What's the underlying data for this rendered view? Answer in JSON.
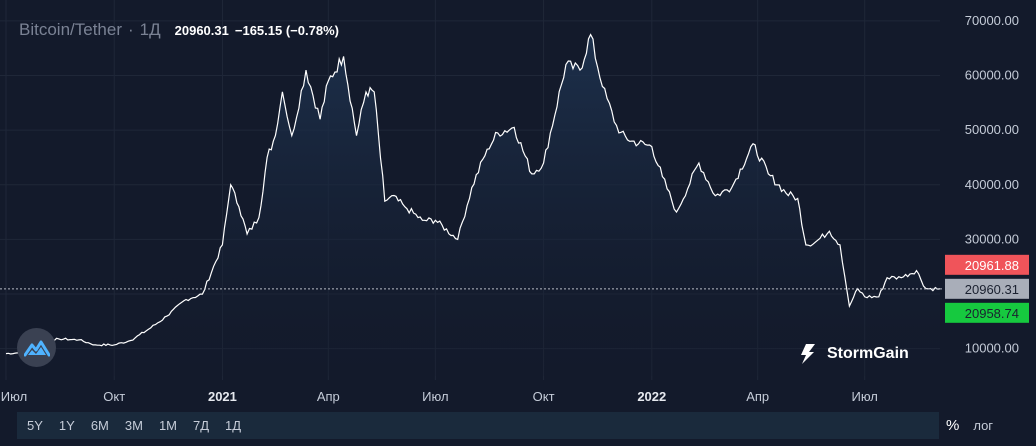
{
  "header": {
    "symbol": "Bitcoin/Tether",
    "separator": "·",
    "interval": "1Д",
    "last_price": "20960.31",
    "change": "−165.15 (−0.78%)"
  },
  "brand": {
    "name": "StormGain"
  },
  "range_buttons": [
    "5Y",
    "1Y",
    "6M",
    "3M",
    "1M",
    "7Д",
    "1Д"
  ],
  "controls": {
    "percent": "%",
    "log": "лог"
  },
  "price_tags": {
    "ask": "20961.88",
    "last": "20960.31",
    "bid": "20958.74"
  },
  "colors": {
    "background": "#131a2b",
    "line": "#ffffff",
    "ask_tag": "#f0545a",
    "last_tag": "#a9aeb9",
    "bid_tag": "#16c93f",
    "grid": "#1f2738"
  },
  "chart_data": {
    "type": "area",
    "title": "",
    "xlabel": "",
    "ylabel": "",
    "xlim": [
      "2020-07-01",
      "2022-09-03"
    ],
    "ylim": [
      5000,
      72000
    ],
    "y_ticks": [
      10000,
      20000,
      30000,
      40000,
      50000,
      60000,
      70000
    ],
    "y_tick_labels": [
      "10000.00",
      "20000.00",
      "30000.00",
      "40000.00",
      "50000.00",
      "60000.00",
      "70000.00"
    ],
    "x_tick_labels": [
      {
        "date": "2020-07-01",
        "label": "Июл"
      },
      {
        "date": "2020-10-01",
        "label": "Окт"
      },
      {
        "date": "2021-01-01",
        "label": "2021"
      },
      {
        "date": "2021-04-01",
        "label": "Апр"
      },
      {
        "date": "2021-07-01",
        "label": "Июл"
      },
      {
        "date": "2021-10-01",
        "label": "Окт"
      },
      {
        "date": "2022-01-01",
        "label": "2022"
      },
      {
        "date": "2022-04-01",
        "label": "Апр"
      },
      {
        "date": "2022-07-01",
        "label": "Июл"
      }
    ],
    "grid": true,
    "series": [
      {
        "x": [
          "2020-07-01",
          "2020-07-15",
          "2020-08-01",
          "2020-08-15",
          "2020-09-01",
          "2020-09-15",
          "2020-10-01",
          "2020-10-15",
          "2020-11-01",
          "2020-11-15",
          "2020-12-01",
          "2020-12-15",
          "2021-01-01",
          "2021-01-08",
          "2021-01-15",
          "2021-01-22",
          "2021-02-01",
          "2021-02-08",
          "2021-02-15",
          "2021-02-21",
          "2021-03-01",
          "2021-03-13",
          "2021-03-25",
          "2021-04-01",
          "2021-04-14",
          "2021-04-25",
          "2021-05-03",
          "2021-05-10",
          "2021-05-19",
          "2021-05-25",
          "2021-06-05",
          "2021-06-20",
          "2021-07-01",
          "2021-07-20",
          "2021-08-01",
          "2021-08-14",
          "2021-08-23",
          "2021-09-06",
          "2021-09-21",
          "2021-10-01",
          "2021-10-20",
          "2021-11-01",
          "2021-11-10",
          "2021-11-20",
          "2021-12-04",
          "2021-12-15",
          "2022-01-01",
          "2022-01-10",
          "2022-01-22",
          "2022-02-10",
          "2022-02-24",
          "2022-03-10",
          "2022-03-28",
          "2022-04-10",
          "2022-04-25",
          "2022-05-05",
          "2022-05-12",
          "2022-05-20",
          "2022-06-01",
          "2022-06-10",
          "2022-06-18",
          "2022-06-25",
          "2022-07-01",
          "2022-07-13",
          "2022-07-20",
          "2022-08-01",
          "2022-08-14",
          "2022-08-22",
          "2022-09-03"
        ],
        "y": [
          9100,
          9300,
          11300,
          11800,
          11600,
          10700,
          10700,
          11500,
          13800,
          16000,
          19000,
          20000,
          29000,
          40000,
          36000,
          31000,
          34000,
          45000,
          49000,
          57000,
          49000,
          61000,
          52000,
          59000,
          63500,
          49000,
          57000,
          57000,
          37000,
          38000,
          36000,
          33500,
          33500,
          30000,
          39500,
          46500,
          49500,
          50500,
          42000,
          44000,
          62000,
          61000,
          67500,
          58000,
          49500,
          48000,
          47000,
          41500,
          35000,
          44000,
          38000,
          39500,
          47500,
          42000,
          38500,
          37500,
          29000,
          29500,
          31500,
          29000,
          17800,
          21000,
          19500,
          19500,
          23000,
          23000,
          24300,
          21000,
          20960
        ]
      }
    ]
  }
}
